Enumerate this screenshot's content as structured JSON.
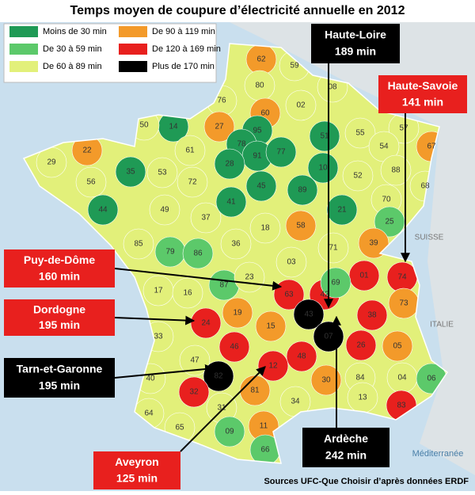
{
  "title": "Temps moyen de coupure d’électricité annuelle en 2012",
  "legend": [
    {
      "label": "Moins de 30 min",
      "color": "#1f9a55"
    },
    {
      "label": "De 30 à 59 min",
      "color": "#5cc96a"
    },
    {
      "label": "De 60 à 89 min",
      "color": "#e2f07a"
    },
    {
      "label": "De 90 à 119 min",
      "color": "#f39a2a"
    },
    {
      "label": "De 120 à 169 min",
      "color": "#e8201e"
    },
    {
      "label": "Plus de 170 min",
      "color": "#000000"
    }
  ],
  "departments": [
    "62",
    "59",
    "80",
    "76",
    "60",
    "02",
    "08",
    "14",
    "50",
    "27",
    "95",
    "78",
    "91",
    "77",
    "51",
    "55",
    "57",
    "54",
    "67",
    "22",
    "29",
    "35",
    "61",
    "53",
    "72",
    "28",
    "45",
    "89",
    "10",
    "52",
    "88",
    "68",
    "56",
    "44",
    "49",
    "37",
    "41",
    "21",
    "70",
    "25",
    "58",
    "18",
    "36",
    "85",
    "79",
    "86",
    "39",
    "71",
    "03",
    "01",
    "74",
    "17",
    "16",
    "87",
    "23",
    "63",
    "42",
    "69",
    "73",
    "38",
    "19",
    "24",
    "15",
    "43",
    "07",
    "26",
    "05",
    "33",
    "46",
    "48",
    "12",
    "47",
    "82",
    "40",
    "30",
    "84",
    "04",
    "06",
    "83",
    "13",
    "81",
    "34",
    "32",
    "64",
    "65",
    "31",
    "11",
    "09",
    "66"
  ],
  "callouts": [
    {
      "name": "Haute-Loire",
      "value": "189 min"
    },
    {
      "name": "Haute-Savoie",
      "value": "141 min"
    },
    {
      "name": "Puy-de-Dôme",
      "value": "160 min"
    },
    {
      "name": "Dordogne",
      "value": "195 min"
    },
    {
      "name": "Tarn-et-Garonne",
      "value": "195 min"
    },
    {
      "name": "Aveyron",
      "value": "125 min"
    },
    {
      "name": "Ardèche",
      "value": "242 min"
    }
  ],
  "neighbors": [
    "SUISSE",
    "ITALIE"
  ],
  "sea": "Méditerranée",
  "source": "Sources UFC-Que Choisir d’après données ERDF"
}
